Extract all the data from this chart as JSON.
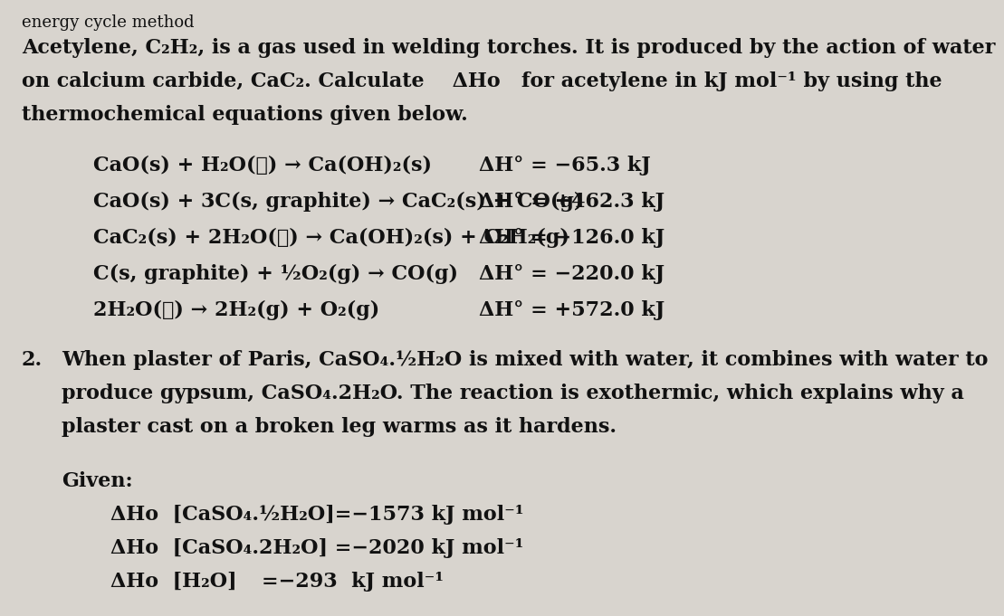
{
  "background_color": "#d8d4ce",
  "text_color": "#111111",
  "title_line": "energy cycle method",
  "para1_line1": "Acetylene, C₂H₂, is a gas used in welding torches. It is produced by the action of water",
  "para1_line2": "on calcium carbide, CaC₂. Calculate    ΔHᴏ   for acetylene in kJ mol⁻¹ by using the",
  "para1_line3": "thermochemical equations given below.",
  "eq1": "CaO(s) + H₂O(ℓ) → Ca(OH)₂(s)",
  "eq2": "CaO(s) + 3C(s, graphite) → CaC₂(s) + CO(g)",
  "eq3": "CaC₂(s) + 2H₂O(ℓ) → Ca(OH)₂(s) + C₂H₂(g)",
  "eq4": "C(s, graphite) + ½O₂(g) → CO(g)",
  "eq5": "2H₂O(ℓ) → 2H₂(g) + O₂(g)",
  "dh1": "ΔH° = −65.3 kJ",
  "dh2": "ΔH° = +462.3 kJ",
  "dh3": "ΔH° = −126.0 kJ",
  "dh4": "ΔH° = −220.0 kJ",
  "dh5": "ΔH° = +572.0 kJ",
  "sec2_num": "2.",
  "sec2_line1": "When plaster of Paris, CaSO₄.½H₂O is mixed with water, it combines with water to",
  "sec2_line2": "produce gypsum, CaSO₄.2H₂O. The reaction is exothermic, which explains why a",
  "sec2_line3": "plaster cast on a broken leg warms as it hardens.",
  "given_label": "Given:",
  "giv1": "ΔHᴏ  [CaSO₄.½H₂O]=−1573 kJ mol⁻¹",
  "giv2": "ΔHᴏ  [CaSO₄.2H₂O] =−2020 kJ mol⁻¹",
  "giv3a": "ΔHᴏ  [H₂O]",
  "giv3b": "=−293  kJ mol⁻¹",
  "fs_title": 13,
  "fs_body": 16,
  "fs_eq": 16,
  "fs_dh": 16
}
